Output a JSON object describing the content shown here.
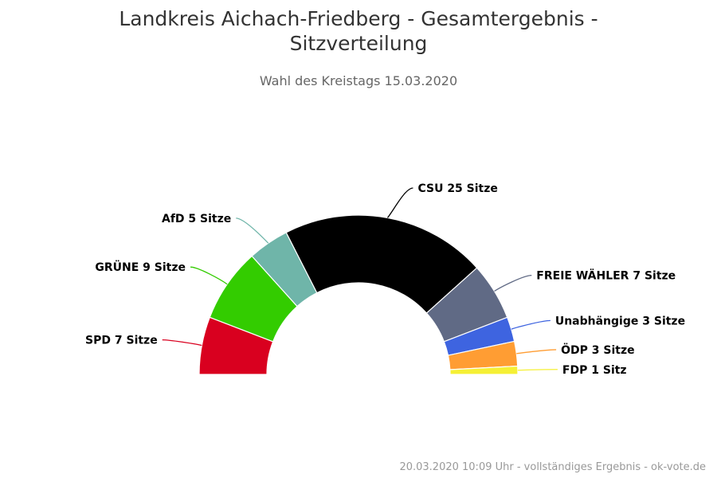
{
  "chart_data": {
    "type": "pie",
    "variant": "parliament-semicircle",
    "title": "Landkreis Aichach-Friedberg - Gesamtergebnis - Sitzverteilung",
    "subtitle": "Wahl des Kreistags 15.03.2020",
    "unit": "Sitze",
    "slices": [
      {
        "party": "SPD",
        "seats": 7,
        "label": "SPD 7 Sitze",
        "color": "#d9001f"
      },
      {
        "party": "GRÜNE",
        "seats": 9,
        "label": "GRÜNE 9 Sitze",
        "color": "#33cc00"
      },
      {
        "party": "AfD",
        "seats": 5,
        "label": "AfD 5 Sitze",
        "color": "#6fb5a9"
      },
      {
        "party": "CSU",
        "seats": 25,
        "label": "CSU 25 Sitze",
        "color": "#000000"
      },
      {
        "party": "FREIE WÄHLER",
        "seats": 7,
        "label": "FREIE WÄHLER 7 Sitze",
        "color": "#606a85"
      },
      {
        "party": "Unabhängige",
        "seats": 3,
        "label": "Unabhängige 3 Sitze",
        "color": "#3e64e0"
      },
      {
        "party": "ÖDP",
        "seats": 3,
        "label": "ÖDP 3 Sitze",
        "color": "#ff9d33"
      },
      {
        "party": "FDP",
        "seats": 1,
        "label": "FDP 1 Sitz",
        "color": "#f5f035"
      }
    ]
  },
  "footer": {
    "credit": "20.03.2020 10:09 Uhr - vollständiges Ergebnis - ok-vote.de"
  }
}
